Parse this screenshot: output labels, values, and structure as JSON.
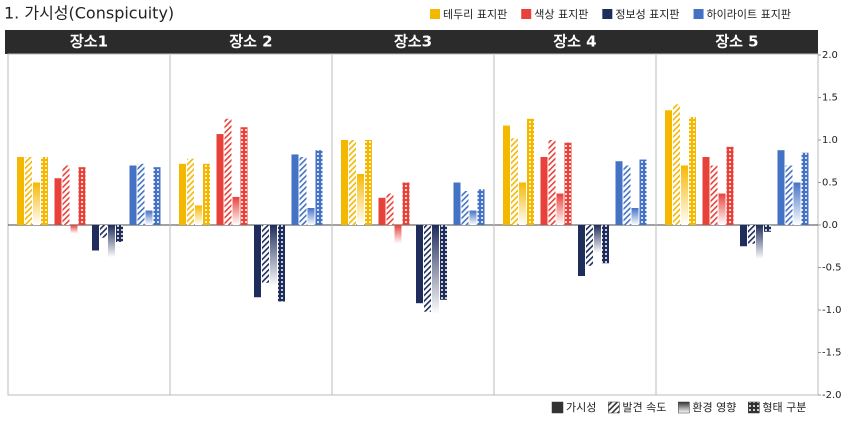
{
  "chart_data": {
    "type": "bar",
    "title": "1. 가시성(Conspicuity)",
    "panels": [
      "장소1",
      "장소 2",
      "장소3",
      "장소 4",
      "장소 5"
    ],
    "metrics": [
      "가시성",
      "발견 속도",
      "환경 영향",
      "형태 구분"
    ],
    "series": [
      {
        "name": "테두리 표지판",
        "color": "#f5b800",
        "values": [
          [
            0.8,
            0.8,
            0.5,
            0.8
          ],
          [
            0.72,
            0.78,
            0.23,
            0.72
          ],
          [
            1.0,
            1.0,
            0.6,
            1.0
          ],
          [
            1.17,
            1.02,
            0.5,
            1.25
          ],
          [
            1.35,
            1.42,
            0.7,
            1.27
          ]
        ]
      },
      {
        "name": "색상 표지판",
        "color": "#e8413a",
        "values": [
          [
            0.55,
            0.7,
            -0.1,
            0.68
          ],
          [
            1.07,
            1.25,
            0.33,
            1.15
          ],
          [
            0.32,
            0.37,
            -0.22,
            0.5
          ],
          [
            0.8,
            1.0,
            0.37,
            0.97
          ],
          [
            0.8,
            0.7,
            0.37,
            0.92
          ]
        ]
      },
      {
        "name": "정보성 표지판",
        "color": "#1f2d5c",
        "values": [
          [
            -0.3,
            -0.15,
            -0.38,
            -0.2
          ],
          [
            -0.85,
            -0.68,
            -0.72,
            -0.9
          ],
          [
            -0.92,
            -1.02,
            -1.05,
            -0.88
          ],
          [
            -0.6,
            -0.48,
            -0.33,
            -0.45
          ],
          [
            -0.25,
            -0.22,
            -0.4,
            -0.08
          ]
        ]
      },
      {
        "name": "하이라이트 표지판",
        "color": "#4472c4",
        "values": [
          [
            0.7,
            0.72,
            0.17,
            0.68
          ],
          [
            0.83,
            0.8,
            0.2,
            0.88
          ],
          [
            0.5,
            0.4,
            0.17,
            0.42
          ],
          [
            0.75,
            0.7,
            0.2,
            0.77
          ],
          [
            0.88,
            0.7,
            0.5,
            0.85
          ]
        ]
      }
    ],
    "ylim": [
      -2,
      2
    ],
    "yticks": [
      {
        "value": 2,
        "label": "2.0"
      },
      {
        "value": 1.5,
        "label": "1.5"
      },
      {
        "value": 1,
        "label": "1.0"
      },
      {
        "value": 0.5,
        "label": "0.5"
      },
      {
        "value": 0,
        "label": "0.0"
      },
      {
        "value": -0.5,
        "label": "-0.5"
      },
      {
        "value": -1,
        "label": "-1.0"
      },
      {
        "value": -1.5,
        "label": "-1.5"
      },
      {
        "value": -2,
        "label": "-2.0"
      }
    ],
    "grid": false
  }
}
